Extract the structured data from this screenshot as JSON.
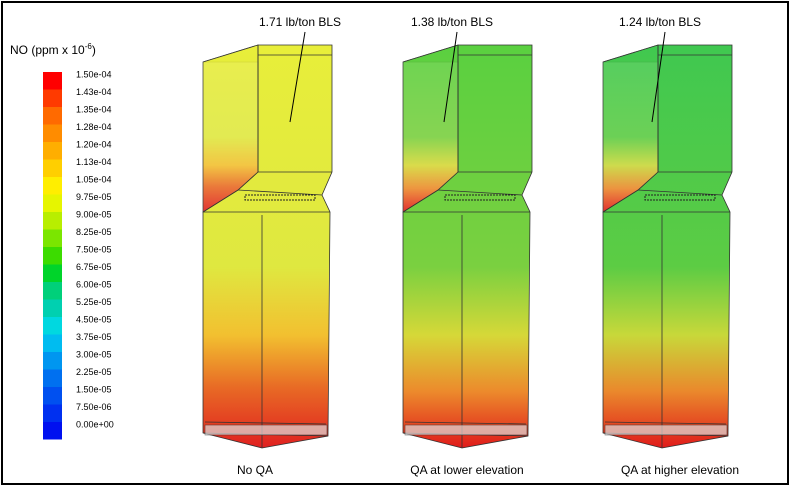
{
  "legend": {
    "title_prefix": "NO (ppm x 10",
    "title_exponent": "-6",
    "title_suffix": ")",
    "levels": [
      {
        "label": "1.50e-04",
        "color": "#ff0000"
      },
      {
        "label": "1.43e-04",
        "color": "#ff3a00"
      },
      {
        "label": "1.35e-04",
        "color": "#ff6a00"
      },
      {
        "label": "1.28e-04",
        "color": "#ff8c00"
      },
      {
        "label": "1.20e-04",
        "color": "#ffae00"
      },
      {
        "label": "1.13e-04",
        "color": "#ffcf00"
      },
      {
        "label": "1.05e-04",
        "color": "#ffee00"
      },
      {
        "label": "9.75e-05",
        "color": "#e6f500"
      },
      {
        "label": "9.00e-05",
        "color": "#b8ee00"
      },
      {
        "label": "8.25e-05",
        "color": "#7be600"
      },
      {
        "label": "7.50e-05",
        "color": "#3cdc00"
      },
      {
        "label": "6.75e-05",
        "color": "#00d42a"
      },
      {
        "label": "6.00e-05",
        "color": "#00d07a"
      },
      {
        "label": "5.25e-05",
        "color": "#00d0b0"
      },
      {
        "label": "4.50e-05",
        "color": "#00d8e0"
      },
      {
        "label": "3.75e-05",
        "color": "#00bcf0"
      },
      {
        "label": "3.00e-05",
        "color": "#0096f0"
      },
      {
        "label": "2.25e-05",
        "color": "#0070f0"
      },
      {
        "label": "1.50e-05",
        "color": "#0050f0"
      },
      {
        "label": "7.50e-06",
        "color": "#0030f0"
      },
      {
        "label": "0.00e+00",
        "color": "#0010f0"
      }
    ]
  },
  "panels": [
    {
      "annotation": "1.71 lb/ton BLS",
      "caption": "No QA"
    },
    {
      "annotation": "1.38 lb/ton BLS",
      "caption": "QA at lower elevation"
    },
    {
      "annotation": "1.24 lb/ton BLS",
      "caption": "QA at higher elevation"
    }
  ]
}
